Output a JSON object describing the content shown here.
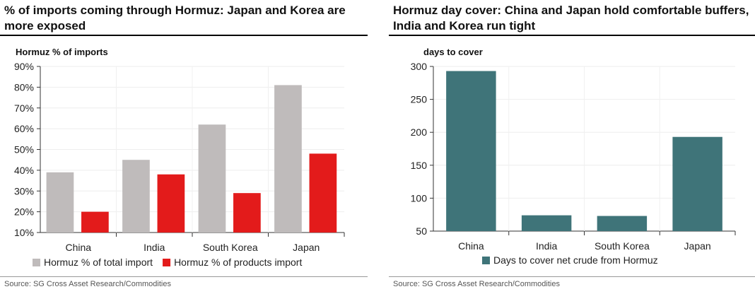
{
  "chart_data": [
    {
      "type": "bar",
      "title": "% of imports coming through Hormuz: Japan and Korea are more exposed",
      "ylabel": "Hormuz % of imports",
      "categories": [
        "China",
        "India",
        "South Korea",
        "Japan"
      ],
      "series": [
        {
          "name": "Hormuz % of total import",
          "values": [
            39,
            45,
            62,
            81
          ],
          "color": "#bfbbbb"
        },
        {
          "name": "Hormuz % of products import",
          "values": [
            20,
            38,
            29,
            48
          ],
          "color": "#e31b1b"
        }
      ],
      "ylim": [
        10,
        90
      ],
      "yticks": [
        "10%",
        "20%",
        "30%",
        "40%",
        "50%",
        "60%",
        "70%",
        "80%",
        "90%"
      ],
      "grid": true,
      "legend": "bottom",
      "source": "Source: SG Cross Asset Research/Commodities"
    },
    {
      "type": "bar",
      "title": "Hormuz day cover: China and Japan hold comfortable buffers, India and Korea run tight",
      "ylabel": "days to cover",
      "categories": [
        "China",
        "India",
        "South Korea",
        "Japan"
      ],
      "series": [
        {
          "name": "Days to cover net crude from Hormuz",
          "values": [
            293,
            74,
            73,
            193
          ],
          "color": "#3f7479"
        }
      ],
      "ylim": [
        50,
        300
      ],
      "yticks": [
        "50",
        "100",
        "150",
        "200",
        "250",
        "300"
      ],
      "grid": true,
      "legend": "bottom",
      "source": "Source: SG Cross Asset Research/Commodities"
    }
  ]
}
